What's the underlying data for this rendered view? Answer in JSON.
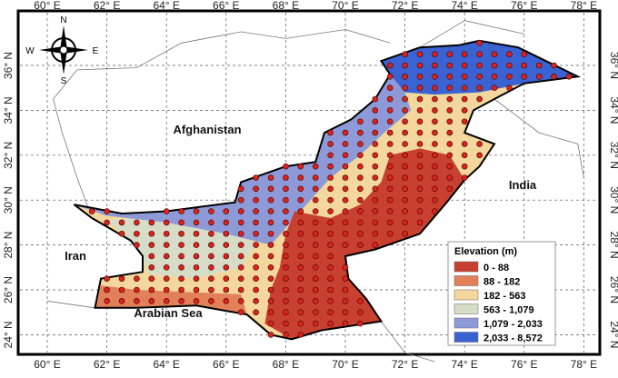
{
  "map": {
    "lon_labels": [
      "60° E",
      "62° E",
      "64° E",
      "66° E",
      "68° E",
      "70° E",
      "72° E",
      "74° E",
      "76° E",
      "78° E"
    ],
    "lat_labels": [
      "24° N",
      "26° N",
      "28° N",
      "30° N",
      "32° N",
      "34° N",
      "36° N"
    ],
    "compass": {
      "n": "N",
      "e": "E",
      "s": "S",
      "w": "W"
    },
    "places": [
      "Afghanistan",
      "India",
      "Iran",
      "Arabian Sea"
    ],
    "legend": {
      "title": "Elevation (m)",
      "items": [
        {
          "label": "0 - 88",
          "color": "#c8402f"
        },
        {
          "label": "88 - 182",
          "color": "#e2805a"
        },
        {
          "label": "182 - 563",
          "color": "#f4d79c"
        },
        {
          "label": "563 - 1,079",
          "color": "#d7dcc6"
        },
        {
          "label": "1,079 - 2,033",
          "color": "#8e9ad8"
        },
        {
          "label": "2,033 - 8,572",
          "color": "#3a62d3"
        }
      ]
    }
  }
}
